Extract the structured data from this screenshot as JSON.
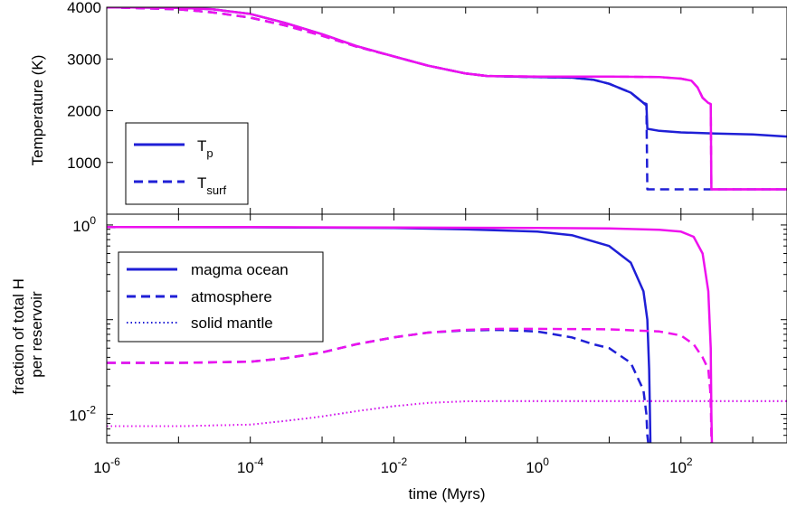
{
  "chart_data": [
    {
      "type": "line",
      "ylabel": "Temperature (K)",
      "xscale": "log",
      "xlim": [
        1e-06,
        3000
      ],
      "ylim": [
        0,
        4000
      ],
      "yticks": [
        {
          "value": 1000,
          "label": "1000"
        },
        {
          "value": 2000,
          "label": "2000"
        },
        {
          "value": 3000,
          "label": "3000"
        },
        {
          "value": 4000,
          "label": "4000"
        }
      ],
      "legend": {
        "placement": "lower-left",
        "entries": [
          {
            "base": "T",
            "sub": "p",
            "style": "solid"
          },
          {
            "base": "T",
            "sub": "surf",
            "style": "dashed"
          }
        ]
      },
      "series": [
        {
          "key": "tp_blue",
          "color": "#1f1fd6",
          "style": "solid",
          "x": [
            1e-06,
            1e-05,
            3e-05,
            0.0001,
            0.0003,
            0.001,
            0.003,
            0.01,
            0.03,
            0.1,
            0.2,
            1,
            3,
            6,
            10,
            20,
            30,
            33,
            34,
            50,
            100,
            300,
            1000,
            3000
          ],
          "y": [
            4000,
            3990,
            3960,
            3870,
            3700,
            3480,
            3250,
            3050,
            2870,
            2720,
            2670,
            2650,
            2640,
            2600,
            2520,
            2350,
            2150,
            2130,
            1650,
            1610,
            1580,
            1560,
            1540,
            1500
          ]
        },
        {
          "key": "tsurf_blue",
          "color": "#1f1fd6",
          "style": "dashed",
          "x": [
            1e-06,
            1e-05,
            3e-05,
            0.0001,
            0.0003,
            0.001,
            0.003,
            0.01,
            0.03,
            0.1,
            0.2,
            1,
            3,
            6,
            10,
            20,
            30,
            33,
            34,
            50,
            100,
            300,
            1000,
            3000
          ],
          "y": [
            4000,
            3960,
            3900,
            3800,
            3650,
            3450,
            3240,
            3050,
            2870,
            2720,
            2670,
            2650,
            2640,
            2600,
            2520,
            2350,
            2150,
            2100,
            480,
            480,
            480,
            480,
            480,
            480
          ]
        },
        {
          "key": "tp_mag",
          "color": "#ee11ee",
          "style": "solid",
          "x": [
            1e-06,
            1e-05,
            3e-05,
            0.0001,
            0.0003,
            0.001,
            0.003,
            0.01,
            0.03,
            0.1,
            0.2,
            1,
            10,
            50,
            100,
            140,
            170,
            200,
            240,
            260,
            265,
            300,
            1000,
            3000
          ],
          "y": [
            4000,
            3990,
            3960,
            3870,
            3700,
            3480,
            3250,
            3050,
            2870,
            2720,
            2670,
            2660,
            2660,
            2650,
            2620,
            2580,
            2450,
            2250,
            2150,
            2130,
            480,
            480,
            480,
            480
          ]
        },
        {
          "key": "tsurf_mag",
          "color": "#ee11ee",
          "style": "dashed",
          "x": [
            1e-06,
            1e-05,
            3e-05,
            0.0001,
            0.0003,
            0.001,
            0.003,
            0.01,
            0.03,
            0.1,
            0.2,
            1,
            10,
            50,
            100,
            140,
            170,
            200,
            240,
            260,
            265,
            300,
            1000,
            3000
          ],
          "y": [
            4000,
            3960,
            3900,
            3800,
            3650,
            3450,
            3240,
            3050,
            2870,
            2720,
            2670,
            2660,
            2660,
            2650,
            2620,
            2580,
            2450,
            2250,
            2150,
            2130,
            480,
            480,
            480,
            480
          ]
        }
      ]
    },
    {
      "type": "line",
      "xlabel": "time (Myrs)",
      "ylabel": "fraction of total H per reservoir",
      "ylabel_lines": [
        "fraction of total H",
        "per reservoir"
      ],
      "xscale": "log",
      "yscale": "log",
      "xlim": [
        1e-06,
        3000
      ],
      "ylim": [
        0.005,
        1.3
      ],
      "xticks": [
        {
          "value": 1e-06,
          "base": "10",
          "exp": "-6"
        },
        {
          "value": 0.0001,
          "base": "10",
          "exp": "-4"
        },
        {
          "value": 0.01,
          "base": "10",
          "exp": "-2"
        },
        {
          "value": 1,
          "base": "10",
          "exp": "0"
        },
        {
          "value": 100,
          "base": "10",
          "exp": "2"
        }
      ],
      "yticks": [
        {
          "value": 0.01,
          "base": "10",
          "exp": "-2"
        },
        {
          "value": 1,
          "base": "10",
          "exp": "0"
        }
      ],
      "legend": {
        "placement": "upper-left",
        "entries": [
          {
            "label": "magma ocean",
            "style": "solid"
          },
          {
            "label": "atmosphere",
            "style": "dashed"
          },
          {
            "label": "solid mantle",
            "style": "dotted"
          }
        ]
      },
      "series": [
        {
          "key": "mo_blue",
          "color": "#1f1fd6",
          "style": "solid",
          "x": [
            1e-06,
            0.0001,
            0.01,
            0.1,
            1,
            3,
            10,
            20,
            30,
            34,
            36,
            37,
            37.5
          ],
          "y": [
            0.95,
            0.945,
            0.93,
            0.9,
            0.85,
            0.78,
            0.6,
            0.4,
            0.2,
            0.1,
            0.03,
            0.01,
            0.005
          ]
        },
        {
          "key": "atm_blue",
          "color": "#1f1fd6",
          "style": "dashed",
          "x": [
            1e-06,
            1e-05,
            0.0001,
            0.0003,
            0.001,
            0.003,
            0.01,
            0.03,
            0.1,
            0.3,
            1,
            3,
            6,
            10,
            20,
            30,
            33,
            34,
            35
          ],
          "y": [
            0.035,
            0.035,
            0.036,
            0.039,
            0.045,
            0.055,
            0.065,
            0.073,
            0.077,
            0.078,
            0.075,
            0.065,
            0.055,
            0.05,
            0.035,
            0.018,
            0.01,
            0.006,
            0.005
          ]
        },
        {
          "key": "sol_blue",
          "color": "#1f1fd6",
          "style": "dotted",
          "x": [
            1e-06,
            1e-05,
            0.0001,
            0.0003,
            0.001,
            0.003,
            0.01,
            0.03,
            0.1,
            0.3,
            1,
            10,
            100,
            3000
          ],
          "y": [
            0.0075,
            0.0075,
            0.0078,
            0.0085,
            0.0095,
            0.0108,
            0.0122,
            0.0132,
            0.0137,
            0.0138,
            0.0138,
            0.0138,
            0.0138,
            0.0138
          ]
        },
        {
          "key": "mo_mag",
          "color": "#ee11ee",
          "style": "solid",
          "x": [
            1e-06,
            0.0001,
            0.01,
            1,
            10,
            50,
            100,
            150,
            200,
            240,
            260,
            265,
            270
          ],
          "y": [
            0.95,
            0.95,
            0.94,
            0.93,
            0.92,
            0.89,
            0.85,
            0.75,
            0.5,
            0.2,
            0.05,
            0.01,
            0.005
          ]
        },
        {
          "key": "atm_mag",
          "color": "#ee11ee",
          "style": "dashed",
          "x": [
            1e-06,
            1e-05,
            0.0001,
            0.0003,
            0.001,
            0.003,
            0.01,
            0.03,
            0.1,
            0.3,
            1,
            10,
            50,
            100,
            150,
            200,
            240,
            255,
            262,
            266
          ],
          "y": [
            0.035,
            0.035,
            0.036,
            0.039,
            0.045,
            0.055,
            0.065,
            0.073,
            0.078,
            0.08,
            0.08,
            0.079,
            0.075,
            0.068,
            0.055,
            0.04,
            0.03,
            0.018,
            0.01,
            0.005
          ]
        },
        {
          "key": "sol_mag",
          "color": "#ee11ee",
          "style": "dotted",
          "x": [
            1e-06,
            1e-05,
            0.0001,
            0.0003,
            0.001,
            0.003,
            0.01,
            0.03,
            0.1,
            0.3,
            1,
            10,
            100,
            3000
          ],
          "y": [
            0.0075,
            0.0075,
            0.0078,
            0.0085,
            0.0095,
            0.0108,
            0.0122,
            0.0132,
            0.0137,
            0.0138,
            0.0138,
            0.0138,
            0.0138,
            0.0138
          ]
        }
      ]
    }
  ]
}
